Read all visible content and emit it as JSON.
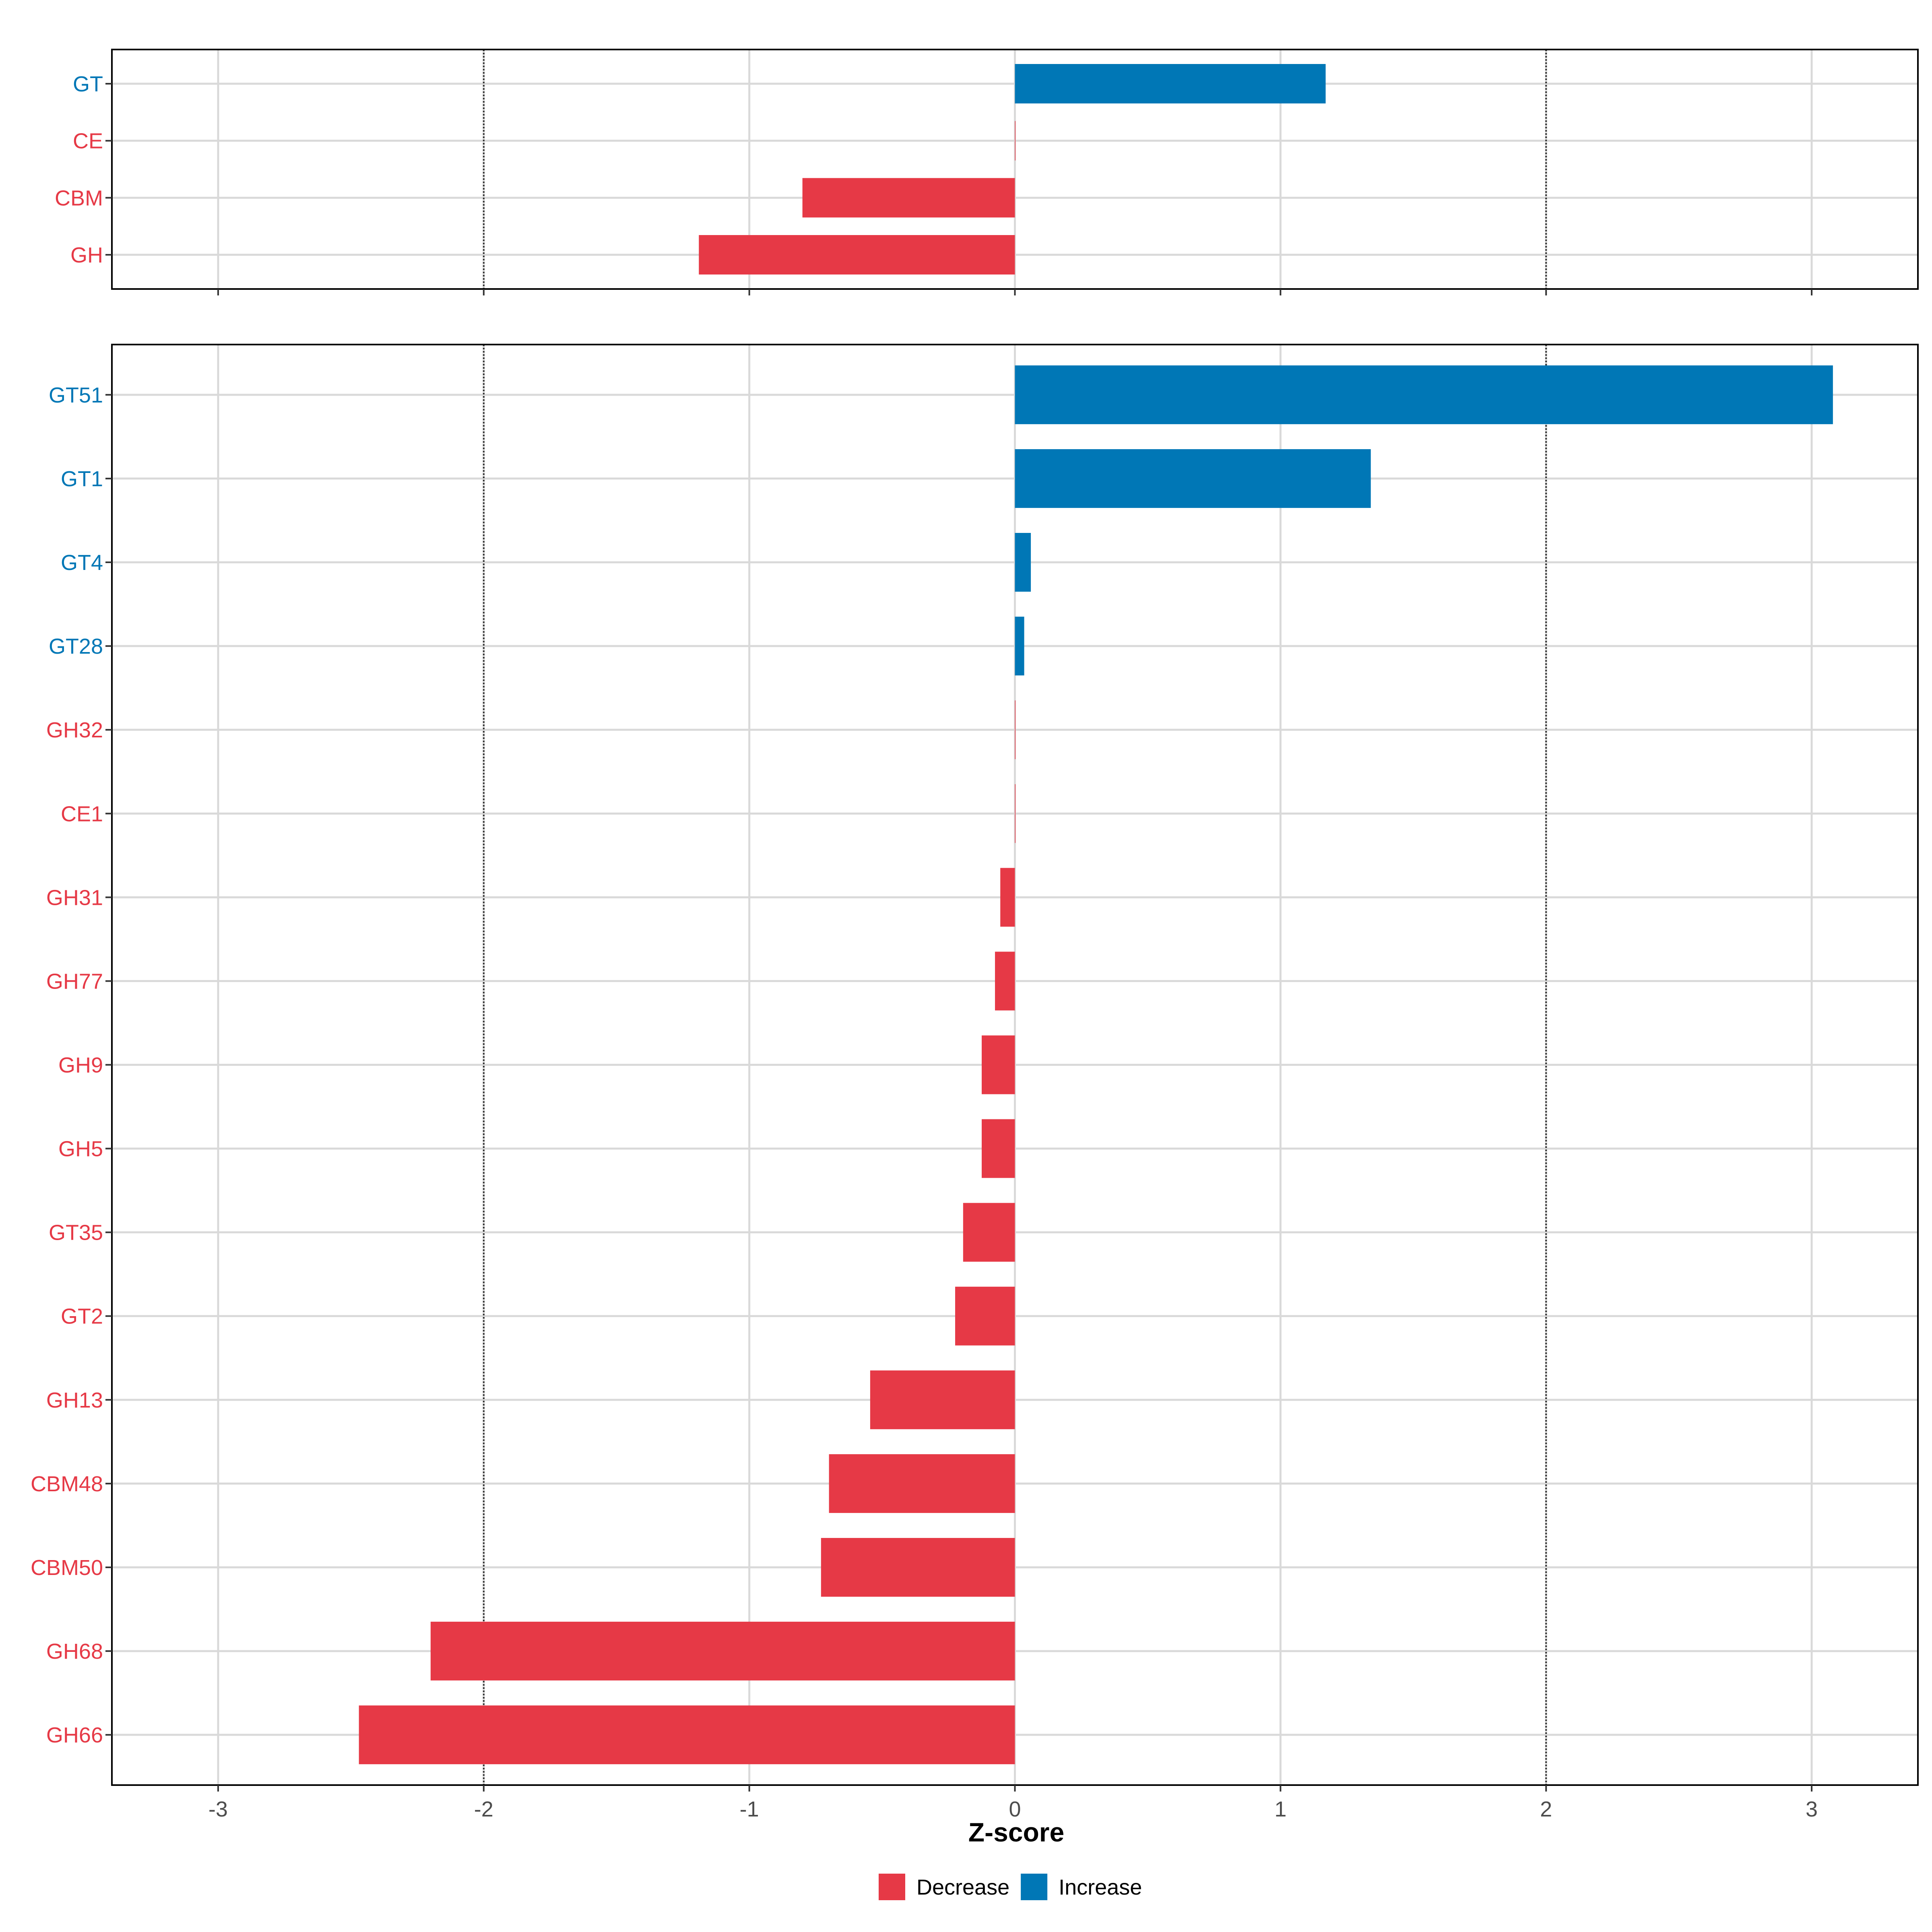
{
  "chart_data": {
    "type": "bar",
    "orientation": "horizontal",
    "xlabel": "Z-score",
    "xlim": [
      -3.4,
      3.4
    ],
    "xticks": [
      -3,
      -2,
      -1,
      0,
      1,
      2,
      3
    ],
    "reference_lines": [
      -2,
      2
    ],
    "grid": true,
    "legend": {
      "position": "bottom",
      "entries": [
        {
          "label": "Decrease",
          "color": "#E63946"
        },
        {
          "label": "Increase",
          "color": "#0077B6"
        }
      ]
    },
    "colors": {
      "Decrease": "#E63946",
      "Increase": "#0077B6"
    },
    "panels": [
      {
        "name": "top",
        "categories": [
          "GT",
          "CE",
          "CBM",
          "GH"
        ],
        "values": [
          1.17,
          0.0,
          -0.8,
          -1.19
        ],
        "direction": [
          "Increase",
          "Decrease",
          "Decrease",
          "Decrease"
        ]
      },
      {
        "name": "bottom",
        "categories": [
          "GT51",
          "GT1",
          "GT4",
          "GT28",
          "GH32",
          "CE1",
          "GH31",
          "GH77",
          "GH9",
          "GH5",
          "GT35",
          "GT2",
          "GH13",
          "CBM48",
          "CBM50",
          "GH68",
          "GH66"
        ],
        "values": [
          3.08,
          1.34,
          0.06,
          0.035,
          0.0,
          0.0,
          -0.055,
          -0.075,
          -0.125,
          -0.125,
          -0.195,
          -0.225,
          -0.545,
          -0.7,
          -0.73,
          -2.2,
          -2.47
        ],
        "direction": [
          "Increase",
          "Increase",
          "Increase",
          "Increase",
          "Decrease",
          "Decrease",
          "Decrease",
          "Decrease",
          "Decrease",
          "Decrease",
          "Decrease",
          "Decrease",
          "Decrease",
          "Decrease",
          "Decrease",
          "Decrease",
          "Decrease"
        ]
      }
    ]
  }
}
